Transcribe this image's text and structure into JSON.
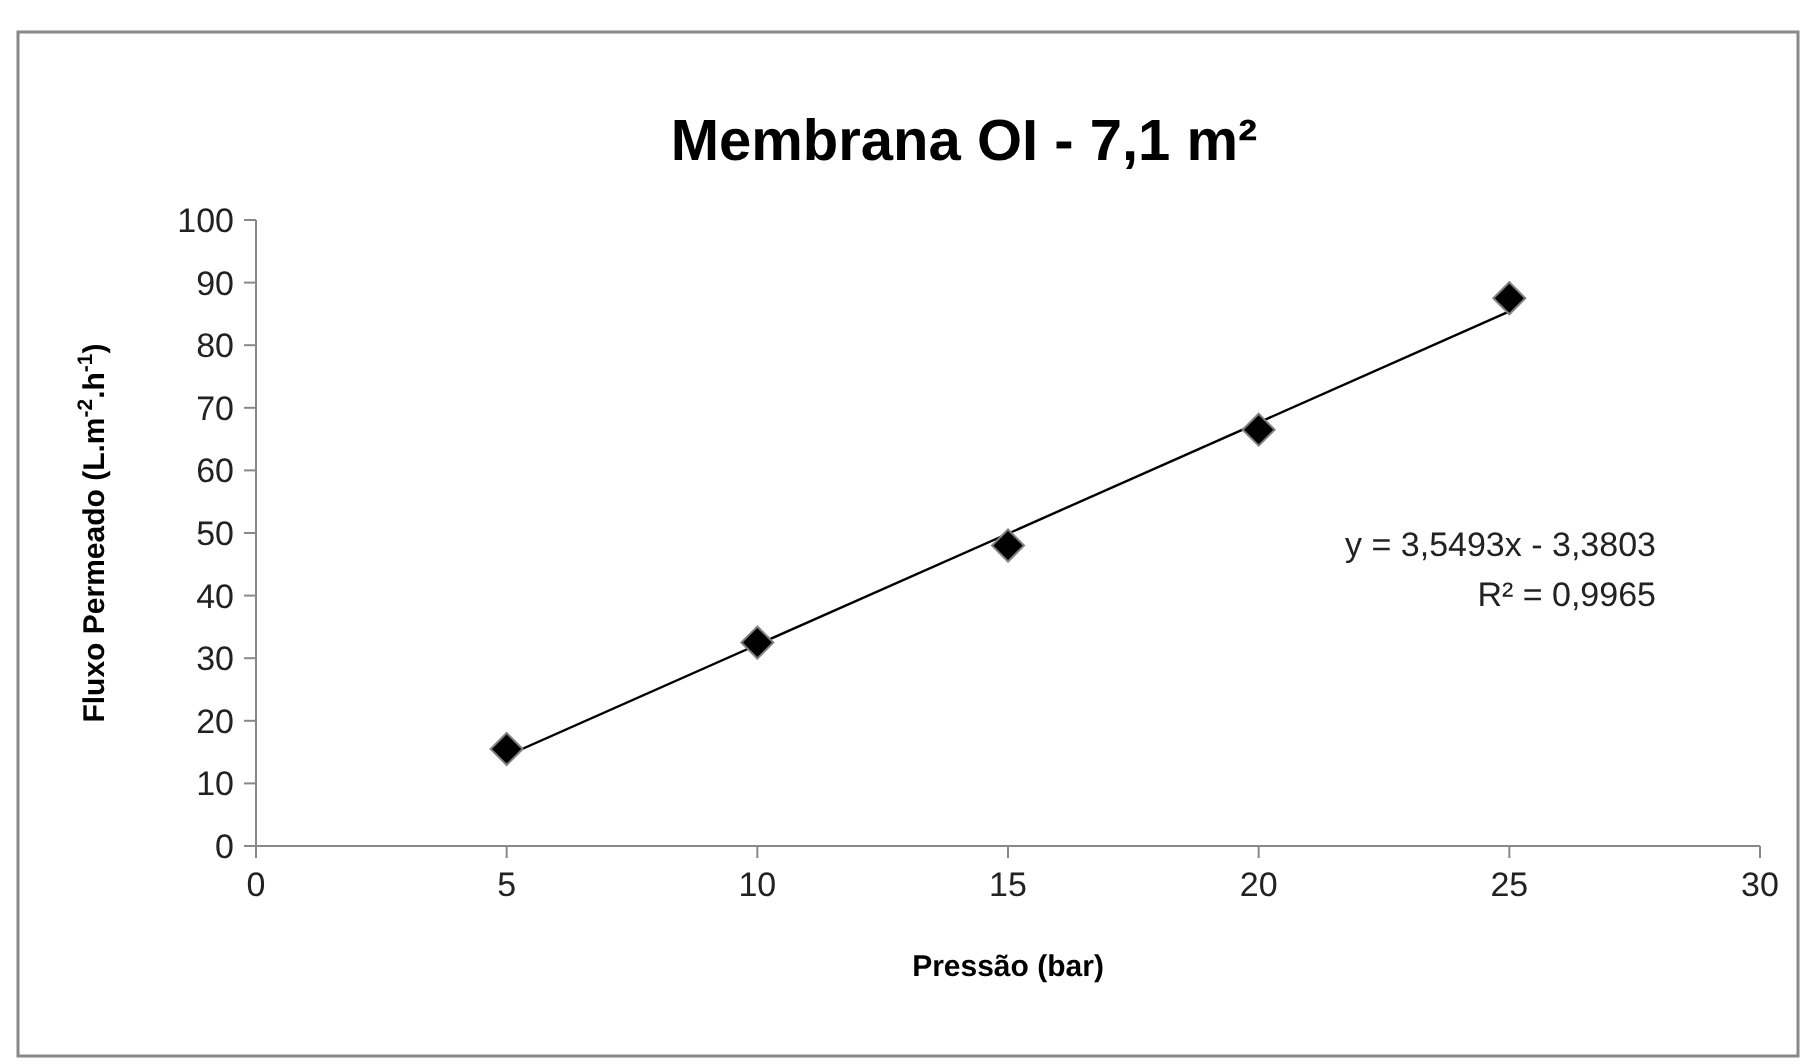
{
  "chart_data": {
    "type": "scatter",
    "title": "Membrana OI - 7,1 m²",
    "xlabel": "Pressão (bar)",
    "ylabel": "Fluxo Permeado (L.m$^{-2}$.h$^{-1}$)",
    "x": [
      5,
      10,
      15,
      20,
      25
    ],
    "series": [
      {
        "color": "#000000",
        "marker": "diamond",
        "values": [
          15.5,
          32.5,
          48,
          66.5,
          87.5
        ]
      },
      {
        "type": "line",
        "color": "#000000",
        "marker": "none",
        "x": [
          5,
          25
        ],
        "values": [
          14.4,
          85.4
        ]
      }
    ],
    "xlim": [
      0,
      30
    ],
    "xticks": [
      0,
      5,
      10,
      15,
      20,
      25,
      30
    ],
    "ylim": [
      0,
      100
    ],
    "yticks": [
      0,
      10,
      20,
      30,
      40,
      50,
      60,
      70,
      80,
      90,
      100
    ],
    "annotations": [
      "y = 3,5493x - 3,3803",
      "R² = 0,9965"
    ]
  }
}
